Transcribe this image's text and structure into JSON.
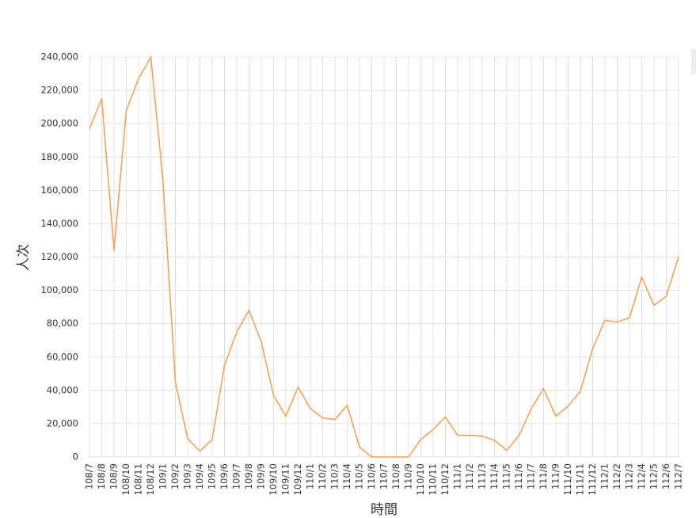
{
  "chart_data": {
    "type": "line",
    "x_label": "時間",
    "y_label": "人次",
    "categories": [
      "108/7",
      "108/8",
      "108/9",
      "108/10",
      "108/11",
      "108/12",
      "109/1",
      "109/2",
      "109/3",
      "109/4",
      "109/5",
      "109/6",
      "109/7",
      "109/8",
      "109/9",
      "109/10",
      "109/11",
      "109/12",
      "110/1",
      "110/2",
      "110/3",
      "110/4",
      "110/5",
      "110/6",
      "110/7",
      "110/8",
      "110/9",
      "110/10",
      "110/11",
      "110/12",
      "111/1",
      "111/2",
      "111/3",
      "111/4",
      "111/5",
      "111/6",
      "111/7",
      "111/8",
      "111/9",
      "111/10",
      "111/11",
      "111/12",
      "112/1",
      "112/2",
      "112/3",
      "112/4",
      "112/5",
      "112/6",
      "112/7"
    ],
    "values": [
      197000,
      215000,
      124000,
      208000,
      227000,
      240000,
      165000,
      45000,
      11000,
      3500,
      10500,
      55000,
      75000,
      88000,
      69000,
      37000,
      24500,
      42000,
      29000,
      23500,
      22500,
      31000,
      6000,
      0,
      0,
      0,
      0,
      10500,
      16500,
      24000,
      13000,
      13000,
      12500,
      10000,
      4000,
      13000,
      29000,
      41000,
      24500,
      30500,
      39500,
      65000,
      82000,
      81000,
      83500,
      108000,
      91000,
      96500,
      120000
    ],
    "color": "#f0a050",
    "ylim": [
      0,
      240000
    ],
    "yticks": [
      0,
      {
        "value": 20000,
        "label": "20,000"
      },
      {
        "value": 40000,
        "label": "40,000"
      },
      {
        "value": 60000,
        "label": "60,000"
      },
      {
        "value": 80000,
        "label": "80,000"
      },
      {
        "value": 100000,
        "label": "100,000"
      },
      {
        "value": 120000,
        "label": "120,000"
      },
      {
        "value": 140000,
        "label": "140,000"
      },
      {
        "value": 160000,
        "label": "160,000"
      },
      {
        "value": 180000,
        "label": "180,000"
      },
      {
        "value": 200000,
        "label": "200,000"
      },
      {
        "value": 220000,
        "label": "220,000"
      },
      {
        "value": 240000,
        "label": "240,000"
      }
    ],
    "grid": true
  }
}
